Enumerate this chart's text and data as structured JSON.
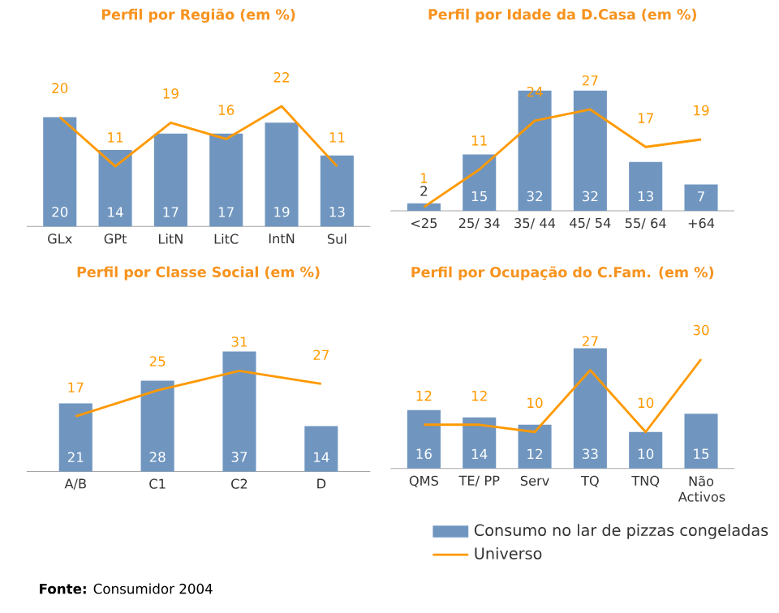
{
  "chart_data": [
    {
      "type": "bar",
      "title": "Perfil por Região (em %)",
      "categories": [
        "GLx",
        "GPt",
        "LitN",
        "LitC",
        "IntN",
        "Sul"
      ],
      "data_labels": true,
      "series": [
        {
          "color": "#7096c0",
          "values": [
            20,
            14,
            17,
            17,
            19,
            13
          ]
        },
        {
          "type": "line",
          "color": "#ff9900",
          "values": [
            20,
            11,
            19,
            16,
            22,
            11
          ]
        }
      ]
    },
    {
      "type": "bar",
      "title": "Perfil por Idade da D.Casa (em %)",
      "categories": [
        "<25",
        "25/ 34",
        "35/ 44",
        "45/ 54",
        "55/ 64",
        "+64"
      ],
      "data_labels": true,
      "series": [
        {
          "color": "#7096c0",
          "values": [
            2,
            15,
            32,
            32,
            13,
            7
          ]
        },
        {
          "type": "line",
          "color": "#ff9900",
          "values": [
            1,
            11,
            24,
            27,
            17,
            19
          ]
        }
      ]
    },
    {
      "type": "bar",
      "title": "Perfil por Classe Social (em %)",
      "categories": [
        "A/B",
        "C1",
        "C2",
        "D"
      ],
      "data_labels": true,
      "series": [
        {
          "color": "#7096c0",
          "values": [
            21,
            28,
            37,
            14
          ]
        },
        {
          "type": "line",
          "color": "#ff9900",
          "values": [
            17,
            25,
            31,
            27
          ]
        }
      ]
    },
    {
      "type": "bar",
      "title": "Perfil por Ocupação do C.Fam. (em %)",
      "categories": [
        "QMS",
        "TE/ PP",
        "Serv",
        "TQ",
        "TNQ",
        "Não Activos"
      ],
      "data_labels": true,
      "legend": "bottom",
      "annotations": [
        "**Fonte:** Consumidor 2004"
      ],
      "series": [
        {
          "name": "Consumo no lar de pizzas congeladas",
          "color": "#7096c0",
          "values": [
            16,
            14,
            12,
            33,
            10,
            15
          ]
        },
        {
          "type": "line",
          "name": "Universo",
          "color": "#ff9900",
          "values": [
            12,
            12,
            10,
            27,
            10,
            30
          ]
        }
      ]
    }
  ]
}
